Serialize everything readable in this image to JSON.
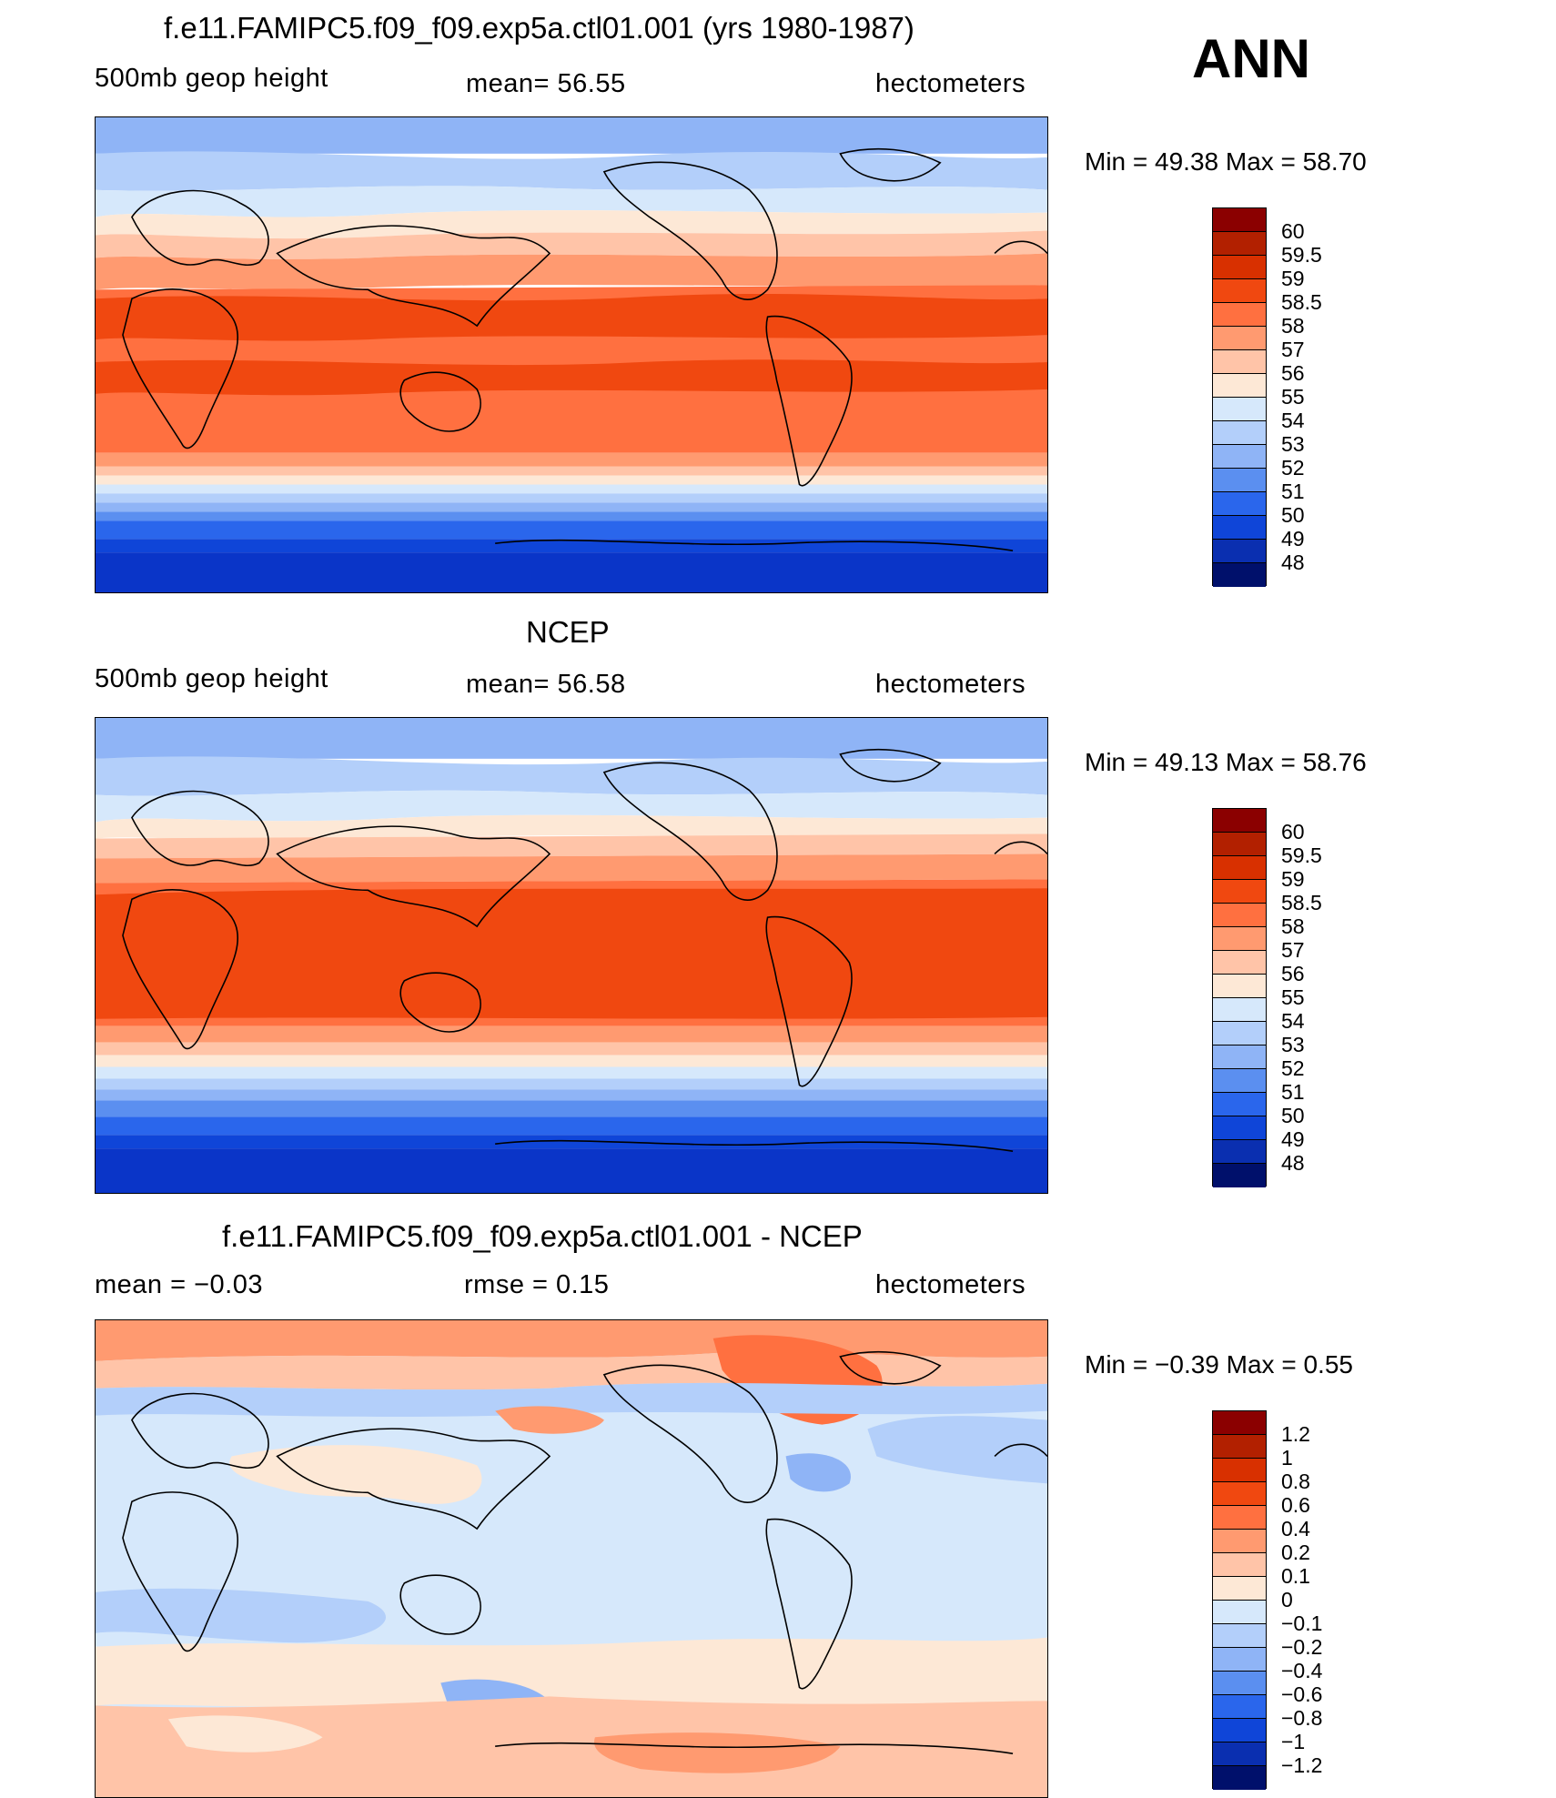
{
  "season": "ANN",
  "panels": [
    {
      "title": "f.e11.FAMIPC5.f09_f09.exp5a.ctl01.001 (yrs 1980-1987)",
      "left_label": "500mb  geop  height",
      "center_label": "mean=   56.55",
      "units": "hectometers",
      "minmax": "Min  =    49.38  Max  =    58.70",
      "colorbar": {
        "labels": [
          "60",
          "59.5",
          "59",
          "58.5",
          "58",
          "57",
          "56",
          "55",
          "54",
          "53",
          "52",
          "51",
          "50",
          "49",
          "48"
        ],
        "colors": [
          "#8b0000",
          "#b22000",
          "#d83000",
          "#f04810",
          "#ff7040",
          "#ff9a70",
          "#ffc4a8",
          "#fde8d6",
          "#d6e8fb",
          "#b3cffa",
          "#8fb4f6",
          "#5b8ff0",
          "#2a66ec",
          "#0f45d8",
          "#0a2fb0",
          "#00106b"
        ]
      }
    },
    {
      "title": "NCEP",
      "left_label": "500mb  geop  height",
      "center_label": "mean=   56.58",
      "units": "hectometers",
      "minmax": "Min  =    49.13  Max  =    58.76",
      "colorbar": {
        "labels": [
          "60",
          "59.5",
          "59",
          "58.5",
          "58",
          "57",
          "56",
          "55",
          "54",
          "53",
          "52",
          "51",
          "50",
          "49",
          "48"
        ],
        "colors": [
          "#8b0000",
          "#b22000",
          "#d83000",
          "#f04810",
          "#ff7040",
          "#ff9a70",
          "#ffc4a8",
          "#fde8d6",
          "#d6e8fb",
          "#b3cffa",
          "#8fb4f6",
          "#5b8ff0",
          "#2a66ec",
          "#0f45d8",
          "#0a2fb0",
          "#00106b"
        ]
      }
    },
    {
      "title": "f.e11.FAMIPC5.f09_f09.exp5a.ctl01.001 - NCEP",
      "left_label": "mean  =    −0.03",
      "center_label": "rmse  =     0.15",
      "units": "hectometers",
      "minmax": "Min  =   −0.39  Max  =     0.55",
      "colorbar": {
        "labels": [
          "1.2",
          "1",
          "0.8",
          "0.6",
          "0.4",
          "0.2",
          "0.1",
          "0",
          "−0.1",
          "−0.2",
          "−0.4",
          "−0.6",
          "−0.8",
          "−1",
          "−1.2"
        ],
        "colors": [
          "#8b0000",
          "#b22000",
          "#d83000",
          "#f04810",
          "#ff7040",
          "#ff9a70",
          "#ffc4a8",
          "#fde8d6",
          "#d6e8fb",
          "#b3cffa",
          "#8fb4f6",
          "#5b8ff0",
          "#2a66ec",
          "#0f45d8",
          "#0a2fb0",
          "#00106b"
        ]
      }
    }
  ]
}
